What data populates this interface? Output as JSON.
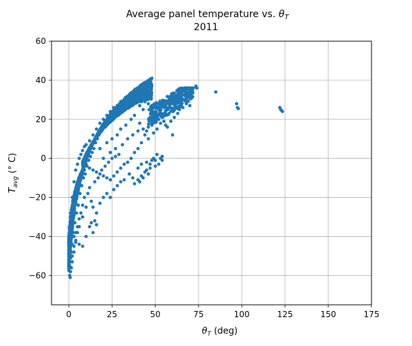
{
  "chart_data": {
    "type": "scatter",
    "title_main": "Average panel temperature vs. ",
    "title_symbol": "θ",
    "title_symbol_sub": "T",
    "subtitle": "2011",
    "xlabel_symbol": "θ",
    "xlabel_symbol_sub": "T",
    "xlabel_unit": " (deg)",
    "ylabel_symbol": "T",
    "ylabel_symbol_sub": "avg",
    "ylabel_unit": " (° C)",
    "xlim": [
      -10,
      175
    ],
    "ylim": [
      -75,
      60
    ],
    "x_ticks": [
      0,
      25,
      50,
      75,
      100,
      125,
      150,
      175
    ],
    "y_ticks": [
      -60,
      -40,
      -20,
      0,
      20,
      40,
      60
    ],
    "grid": true,
    "marker_color": "#1f77b4",
    "series": [
      {
        "values": [
          [
            0.5,
            -60
          ],
          [
            0.8,
            -61
          ],
          [
            1.5,
            -56
          ],
          [
            2,
            -50
          ],
          [
            3,
            -45
          ],
          [
            4,
            -43
          ],
          [
            6,
            -44
          ],
          [
            8,
            -45
          ],
          [
            10,
            -40
          ],
          [
            14,
            -38
          ],
          [
            15,
            -32
          ],
          [
            16,
            -34
          ],
          [
            12,
            -35
          ],
          [
            13,
            -33
          ],
          [
            18,
            -23
          ],
          [
            20,
            -20
          ],
          [
            24,
            -20
          ],
          [
            28,
            -14
          ],
          [
            30,
            -12
          ],
          [
            35,
            -8
          ],
          [
            37,
            -10
          ],
          [
            42,
            -3
          ],
          [
            45,
            -2
          ],
          [
            48,
            -1
          ],
          [
            50,
            -1
          ],
          [
            54,
            1
          ],
          [
            40,
            -5
          ],
          [
            32,
            -11
          ],
          [
            26,
            -16
          ],
          [
            22,
            -18
          ],
          [
            10,
            -25
          ],
          [
            8,
            -30
          ],
          [
            6,
            -35
          ],
          [
            5,
            -38
          ],
          [
            4,
            -42
          ],
          [
            3,
            -48
          ],
          [
            2,
            -53
          ],
          [
            1,
            -58
          ],
          [
            0.5,
            -55
          ],
          [
            0.3,
            -45
          ],
          [
            0.3,
            -35
          ],
          [
            1,
            -28
          ],
          [
            2,
            -20
          ],
          [
            3,
            -12
          ],
          [
            4,
            -6
          ],
          [
            5,
            -3
          ],
          [
            6,
            0
          ],
          [
            7,
            2
          ],
          [
            8,
            4
          ],
          [
            9,
            6
          ],
          [
            10,
            7
          ],
          [
            12,
            9
          ],
          [
            14,
            12
          ],
          [
            16,
            15
          ],
          [
            18,
            18
          ],
          [
            20,
            20
          ],
          [
            22,
            22
          ],
          [
            24,
            24
          ],
          [
            26,
            26
          ],
          [
            28,
            27
          ],
          [
            30,
            29
          ],
          [
            32,
            30
          ],
          [
            34,
            30
          ],
          [
            36,
            31
          ],
          [
            38,
            31
          ],
          [
            40,
            30
          ],
          [
            42,
            29
          ],
          [
            44,
            29
          ],
          [
            45,
            30
          ],
          [
            46,
            28
          ],
          [
            48,
            25
          ],
          [
            50,
            24
          ],
          [
            52,
            25
          ],
          [
            55,
            26
          ],
          [
            58,
            28
          ],
          [
            60,
            30
          ],
          [
            62,
            32
          ],
          [
            65,
            33
          ],
          [
            68,
            34
          ],
          [
            70,
            35
          ],
          [
            72,
            36
          ],
          [
            73.5,
            37
          ],
          [
            74,
            36
          ],
          [
            70,
            27
          ],
          [
            68,
            28
          ],
          [
            66,
            26
          ],
          [
            64,
            25
          ],
          [
            62,
            26
          ],
          [
            60,
            24
          ],
          [
            58,
            23
          ],
          [
            56,
            22
          ],
          [
            54,
            21
          ],
          [
            52,
            20
          ],
          [
            50,
            20
          ],
          [
            48,
            17
          ],
          [
            46,
            16
          ],
          [
            45,
            14
          ],
          [
            44,
            12
          ],
          [
            42,
            8
          ],
          [
            40,
            5
          ],
          [
            38,
            3
          ],
          [
            36,
            0
          ],
          [
            34,
            -2
          ],
          [
            32,
            -3
          ],
          [
            30,
            -5
          ],
          [
            28,
            -7
          ],
          [
            26,
            -9
          ],
          [
            24,
            -11
          ],
          [
            22,
            -10
          ],
          [
            20,
            -9
          ],
          [
            18,
            -8
          ],
          [
            16,
            -7
          ],
          [
            14,
            -6
          ],
          [
            12,
            -5
          ],
          [
            10,
            -3
          ],
          [
            9,
            -6
          ],
          [
            8,
            -8
          ],
          [
            7,
            -10
          ],
          [
            6,
            -13
          ],
          [
            5,
            -16
          ],
          [
            4,
            -20
          ],
          [
            3,
            -25
          ],
          [
            2,
            -30
          ],
          [
            1.5,
            -36
          ],
          [
            1,
            -40
          ],
          [
            0.8,
            -47
          ],
          [
            85,
            34
          ],
          [
            97,
            28
          ],
          [
            97.5,
            26
          ],
          [
            98,
            25.5
          ],
          [
            122,
            26
          ],
          [
            123,
            24.5
          ],
          [
            123.5,
            24
          ],
          [
            122.5,
            25
          ],
          [
            18,
            5
          ],
          [
            22,
            8
          ],
          [
            25,
            10
          ],
          [
            28,
            12
          ],
          [
            30,
            15
          ],
          [
            33,
            17
          ],
          [
            36,
            20
          ],
          [
            38,
            22
          ],
          [
            41,
            18
          ],
          [
            43,
            15
          ],
          [
            46,
            10
          ],
          [
            49,
            13
          ],
          [
            51,
            15
          ],
          [
            53,
            18
          ],
          [
            56,
            17
          ],
          [
            59,
            19
          ],
          [
            61,
            21
          ],
          [
            63,
            23
          ],
          [
            20,
            0
          ],
          [
            24,
            3
          ],
          [
            27,
            5
          ],
          [
            29,
            2
          ],
          [
            31,
            7
          ],
          [
            34,
            10
          ],
          [
            37,
            12
          ],
          [
            40,
            14
          ],
          [
            15,
            -12
          ],
          [
            17,
            -10
          ],
          [
            19,
            -6
          ],
          [
            21,
            -4
          ],
          [
            23,
            -2
          ],
          [
            25,
            0
          ],
          [
            27,
            1
          ],
          [
            12,
            -15
          ],
          [
            11,
            -18
          ],
          [
            13,
            -22
          ],
          [
            14,
            -25
          ],
          [
            16,
            -28
          ],
          [
            9,
            -20
          ],
          [
            8,
            -24
          ],
          [
            7,
            -28
          ],
          [
            6,
            -31
          ],
          [
            5,
            -35
          ],
          [
            4,
            -38
          ],
          [
            3,
            -40
          ],
          [
            2,
            -44
          ],
          [
            1.5,
            -48
          ],
          [
            1,
            -51
          ],
          [
            0.7,
            -53
          ],
          [
            2.5,
            -38
          ],
          [
            3.5,
            -33
          ],
          [
            4.5,
            -28
          ],
          [
            5.5,
            -24
          ],
          [
            6.5,
            -18
          ],
          [
            7.5,
            -14
          ],
          [
            8.5,
            -10
          ],
          [
            9.5,
            -8
          ],
          [
            10.5,
            -4
          ],
          [
            11.5,
            -1
          ],
          [
            12.5,
            1
          ],
          [
            13.5,
            3
          ],
          [
            14.5,
            5
          ],
          [
            15.5,
            8
          ],
          [
            16.5,
            10
          ],
          [
            17.5,
            12
          ],
          [
            19,
            14
          ],
          [
            21,
            16
          ],
          [
            23,
            19
          ],
          [
            25,
            21
          ],
          [
            27,
            23
          ],
          [
            29,
            25
          ],
          [
            31,
            26
          ],
          [
            33,
            27
          ],
          [
            35,
            28
          ],
          [
            37,
            28.5
          ],
          [
            39,
            29
          ],
          [
            41,
            27
          ],
          [
            43,
            25
          ],
          [
            47,
            21
          ],
          [
            50,
            22
          ],
          [
            55,
            19
          ],
          [
            57,
            16
          ],
          [
            60,
            12
          ],
          [
            47,
            -5
          ],
          [
            46,
            -8
          ],
          [
            44,
            -7
          ],
          [
            42,
            -9
          ],
          [
            40,
            -11
          ],
          [
            38,
            -13
          ],
          [
            41,
            -12
          ],
          [
            43,
            -10
          ],
          [
            45,
            -6
          ],
          [
            47,
            -3
          ],
          [
            49,
            0
          ],
          [
            51,
            2
          ],
          [
            53,
            0
          ],
          [
            54,
            -1
          ],
          [
            52,
            -3
          ],
          [
            50,
            -4
          ]
        ]
      }
    ]
  }
}
